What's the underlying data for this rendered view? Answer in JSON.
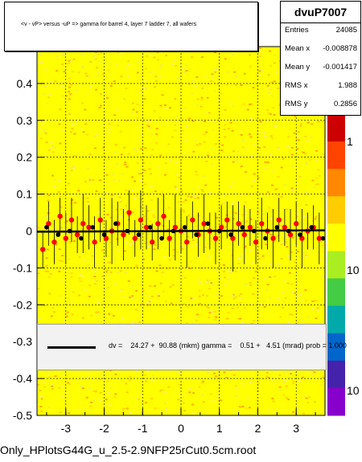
{
  "title": "<v - vP>       versus  -uP =>  gamma for barrel 4, layer 7 ladder 7, all wafers",
  "stats": {
    "name": "dvuP7007",
    "rows": [
      {
        "label": "Entries",
        "value": "24085"
      },
      {
        "label": "Mean x",
        "value": "-0.008878"
      },
      {
        "label": "Mean y",
        "value": "-0.001417"
      },
      {
        "label": "RMS x",
        "value": "1.988"
      },
      {
        "label": "RMS y",
        "value": "0.2856"
      }
    ]
  },
  "fit_text": "dv =    24.27 +  90.88 (mkm) gamma =    0.51 +   4.51 (mrad) prob = 1.000",
  "footer": "Only_HPlotsG44G_u_2.5-2.9NFP25rCut0.5cm.root",
  "colors": {
    "heatmap_fill": "#ffff00",
    "profile_points": "#ff0000",
    "mean_points": "#000000",
    "fit_line": "#000000",
    "palette": [
      "#cc0000",
      "#ff4400",
      "#ff8800",
      "#ffcc00",
      "#ffff00",
      "#aaee22",
      "#44cc44",
      "#00aaaa",
      "#0066cc",
      "#4422aa",
      "#8800cc"
    ]
  },
  "chart_data": {
    "type": "scatter",
    "title": "<v - vP>       versus  -uP =>  gamma for barrel 4, layer 7 ladder 7, all wafers",
    "xlim": [
      -3.75,
      3.75
    ],
    "ylim": [
      -0.5,
      0.5
    ],
    "x_ticks": [
      "-3",
      "-2",
      "-1",
      "0",
      "1",
      "2",
      "3"
    ],
    "y_ticks": [
      "-0.5",
      "-0.4",
      "-0.3",
      "-0.2",
      "-0.1",
      "0",
      "0.1",
      "0.2",
      "0.3",
      "0.4"
    ],
    "z_ticks": [
      "1",
      "10",
      "10"
    ],
    "grid": true,
    "fit_line": {
      "intercept": 0.0,
      "slope": 0.0005
    },
    "series": [
      {
        "x": [
          -3.6,
          -3.45,
          -3.3,
          -3.15,
          -3.0,
          -2.85,
          -2.7,
          -2.55,
          -2.4,
          -2.25,
          -2.1,
          -1.95,
          -1.8,
          -1.65,
          -1.5,
          -1.35,
          -1.2,
          -1.05,
          -0.9,
          -0.75,
          -0.6,
          -0.45,
          -0.3,
          -0.15,
          0.0,
          0.15,
          0.3,
          0.45,
          0.6,
          0.75,
          0.9,
          1.05,
          1.2,
          1.35,
          1.5,
          1.65,
          1.8,
          1.95,
          2.1,
          2.25,
          2.4,
          2.55,
          2.7,
          2.85,
          3.0,
          3.15,
          3.3,
          3.45,
          3.6
        ],
        "y": [
          -0.05,
          0.02,
          -0.03,
          0.04,
          -0.02,
          0.03,
          -0.01,
          0.02,
          0.01,
          -0.03,
          0.03,
          -0.02,
          0.0,
          0.02,
          -0.01,
          0.05,
          -0.02,
          0.03,
          0.01,
          -0.03,
          0.02,
          0.04,
          -0.02,
          0.01,
          0.0,
          -0.03,
          0.03,
          -0.01,
          0.02,
          0.0,
          -0.02,
          0.01,
          0.03,
          -0.02,
          0.02,
          -0.01,
          0.01,
          -0.03,
          0.02,
          0.0,
          -0.02,
          0.03,
          0.01,
          -0.01,
          0.02,
          -0.02,
          0.0,
          0.01,
          -0.02
        ],
        "err": [
          0.05,
          0.06,
          0.06,
          0.05,
          0.07,
          0.06,
          0.05,
          0.08,
          0.06,
          0.07,
          0.06,
          0.05,
          0.09,
          0.06,
          0.07,
          0.06,
          0.05,
          0.08,
          0.06,
          0.05,
          0.07,
          0.06,
          0.05,
          0.09,
          0.06,
          0.07,
          0.05,
          0.06,
          0.08,
          0.05,
          0.07,
          0.06,
          0.05,
          0.09,
          0.06,
          0.08,
          0.05,
          0.06,
          0.07,
          0.05,
          0.08,
          0.06,
          0.05,
          0.07,
          0.06,
          0.08,
          0.05,
          0.06,
          0.07
        ]
      },
      {
        "x": [
          -3.5,
          -3.2,
          -2.9,
          -2.6,
          -2.3,
          -2.0,
          -1.7,
          -1.4,
          -1.1,
          -0.8,
          -0.5,
          -0.2,
          0.1,
          0.4,
          0.7,
          1.0,
          1.3,
          1.6,
          1.9,
          2.2,
          2.5,
          2.8,
          3.1,
          3.4,
          3.7
        ],
        "y": [
          0.01,
          -0.01,
          0.0,
          -0.02,
          0.01,
          -0.01,
          0.02,
          0.0,
          -0.01,
          0.01,
          -0.02,
          0.0,
          0.01,
          -0.01,
          0.02,
          0.0,
          -0.01,
          0.01,
          0.0,
          -0.02,
          0.01,
          0.0,
          -0.01,
          0.01,
          -0.02
        ]
      }
    ]
  }
}
